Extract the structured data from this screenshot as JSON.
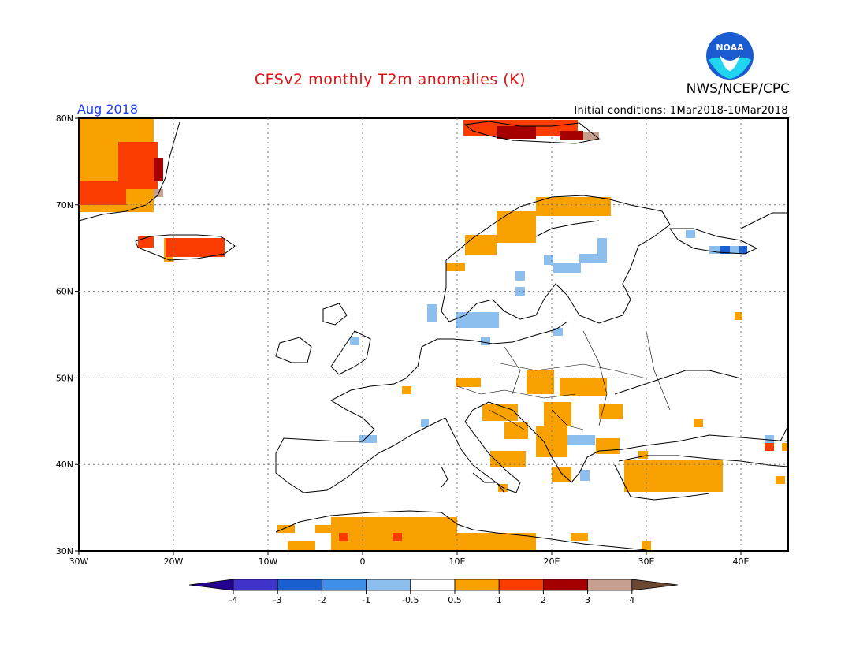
{
  "header": {
    "title": "CFSv2 monthly T2m anomalies (K)",
    "agency": "NWS/NCEP/CPC",
    "logo_text": "NOAA",
    "month": "Aug 2018",
    "initial_conditions": "Initial conditions: 1Mar2018-10Mar2018"
  },
  "map": {
    "lon_range": [
      -30,
      45
    ],
    "lat_range": [
      30,
      80
    ],
    "lat_labels": [
      "30N",
      "40N",
      "50N",
      "60N",
      "70N",
      "80N"
    ],
    "lon_labels": [
      "30W",
      "20W",
      "10W",
      "0",
      "10E",
      "20E",
      "30E",
      "40E"
    ],
    "grid": "dotted every 10 degrees"
  },
  "legend": {
    "labels": [
      "-4",
      "-3",
      "-2",
      "-1",
      "-0.5",
      "0.5",
      "1",
      "2",
      "3",
      "4"
    ],
    "colors": [
      "#24018f",
      "#3f33c9",
      "#1a5fd0",
      "#3f8ee8",
      "#8dbfee",
      "#ffffff",
      "#f9a100",
      "#fa3c00",
      "#a40000",
      "#c79f91",
      "#6b4633"
    ]
  },
  "colors": {
    "plus_0_5_to_1": "#f9a100",
    "plus_1_to_2": "#fa3c00",
    "plus_2_to_3": "#a40000",
    "plus_3_to_4": "#c79f91",
    "minus_0_5_to_1": "#8dbfee",
    "minus_1_to_2": "#3f8ee8",
    "minus_2_to_3": "#1a5fd0"
  }
}
